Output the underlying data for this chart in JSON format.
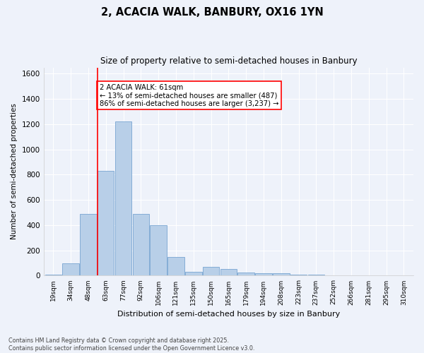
{
  "title": "2, ACACIA WALK, BANBURY, OX16 1YN",
  "subtitle": "Size of property relative to semi-detached houses in Banbury",
  "xlabel": "Distribution of semi-detached houses by size in Banbury",
  "ylabel": "Number of semi-detached properties",
  "bins": [
    "19sqm",
    "34sqm",
    "48sqm",
    "63sqm",
    "77sqm",
    "92sqm",
    "106sqm",
    "121sqm",
    "135sqm",
    "150sqm",
    "165sqm",
    "179sqm",
    "194sqm",
    "208sqm",
    "223sqm",
    "237sqm",
    "252sqm",
    "266sqm",
    "281sqm",
    "295sqm",
    "310sqm"
  ],
  "values": [
    10,
    100,
    490,
    830,
    1220,
    490,
    400,
    150,
    30,
    70,
    55,
    25,
    20,
    18,
    8,
    6,
    4,
    3,
    3,
    2,
    1
  ],
  "bar_color": "#b8cfe8",
  "bar_edge_color": "#6699cc",
  "annotation_text": "2 ACACIA WALK: 61sqm\n← 13% of semi-detached houses are smaller (487)\n86% of semi-detached houses are larger (3,237) →",
  "ylim": [
    0,
    1650
  ],
  "yticks": [
    0,
    200,
    400,
    600,
    800,
    1000,
    1200,
    1400,
    1600
  ],
  "background_color": "#eef2fa",
  "grid_color": "#ffffff",
  "footnote": "Contains HM Land Registry data © Crown copyright and database right 2025.\nContains public sector information licensed under the Open Government Licence v3.0."
}
